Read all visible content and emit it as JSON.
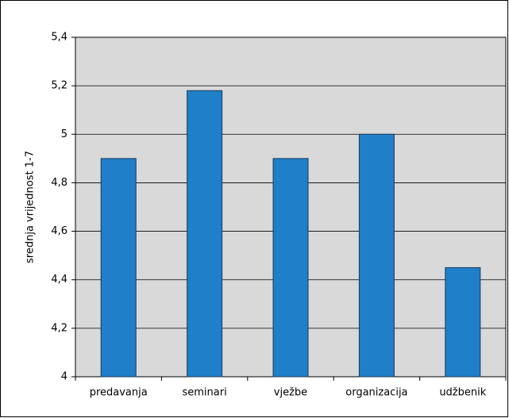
{
  "chart_data": {
    "type": "bar",
    "y_label": "srednja vrijednost 1-7",
    "categories": [
      "predavanja",
      "seminari",
      "vježbe",
      "organizacija",
      "udžbenik"
    ],
    "values": [
      4.9,
      5.18,
      4.9,
      5.0,
      4.45
    ],
    "color": "#1f7fc8",
    "ylim": [
      4,
      5.4
    ],
    "yticks": [
      4,
      {
        "value": 4.2,
        "label": "4,2"
      },
      {
        "value": 4.4,
        "label": "4,4"
      },
      {
        "value": 4.6,
        "label": "4,6"
      },
      {
        "value": 4.8,
        "label": "4,8"
      },
      5,
      {
        "value": 5.2,
        "label": "5,2"
      },
      {
        "value": 5.4,
        "label": "5,4"
      }
    ],
    "grid": true
  }
}
